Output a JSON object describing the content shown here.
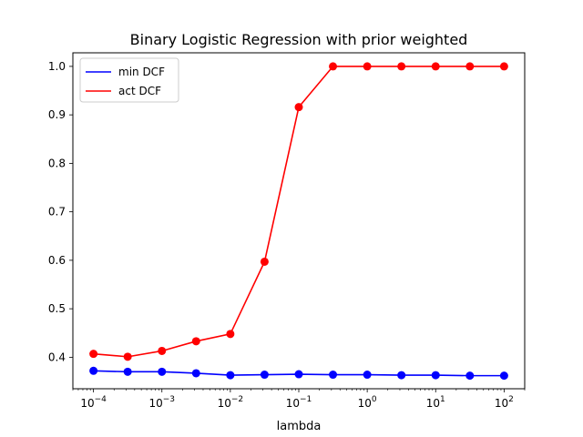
{
  "chart_data": {
    "type": "line",
    "title": "Binary Logistic Regression with prior weighted",
    "xlabel": "lambda",
    "ylabel": "",
    "xscale": "log",
    "xlim": [
      5e-05,
      200
    ],
    "ylim": [
      0.335,
      1.028
    ],
    "x": [
      0.0001,
      0.000316,
      0.001,
      0.00316,
      0.01,
      0.0316,
      0.1,
      0.316,
      1,
      3.16,
      10,
      31.6,
      100
    ],
    "x_ticks": [
      {
        "value": 0.0001,
        "base": "10",
        "exp": "−4"
      },
      {
        "value": 0.001,
        "base": "10",
        "exp": "−3"
      },
      {
        "value": 0.01,
        "base": "10",
        "exp": "−2"
      },
      {
        "value": 0.1,
        "base": "10",
        "exp": "−1"
      },
      {
        "value": 1,
        "base": "10",
        "exp": "0"
      },
      {
        "value": 10,
        "base": "10",
        "exp": "1"
      },
      {
        "value": 100,
        "base": "10",
        "exp": "2"
      }
    ],
    "y_ticks": [
      {
        "value": 0.4,
        "label": "0.4"
      },
      {
        "value": 0.5,
        "label": "0.5"
      },
      {
        "value": 0.6,
        "label": "0.6"
      },
      {
        "value": 0.7,
        "label": "0.7"
      },
      {
        "value": 0.8,
        "label": "0.8"
      },
      {
        "value": 0.9,
        "label": "0.9"
      },
      {
        "value": 1.0,
        "label": "1.0"
      }
    ],
    "series": [
      {
        "name": "min DCF",
        "color": "#0000ff",
        "values": [
          0.372,
          0.37,
          0.37,
          0.367,
          0.363,
          0.364,
          0.365,
          0.364,
          0.364,
          0.363,
          0.363,
          0.362,
          0.362
        ]
      },
      {
        "name": "act DCF",
        "color": "#ff0000",
        "values": [
          0.407,
          0.401,
          0.413,
          0.433,
          0.448,
          0.597,
          0.916,
          1.0,
          1.0,
          1.0,
          1.0,
          1.0,
          1.0
        ]
      }
    ],
    "grid": false,
    "legend_position": "top-left"
  }
}
